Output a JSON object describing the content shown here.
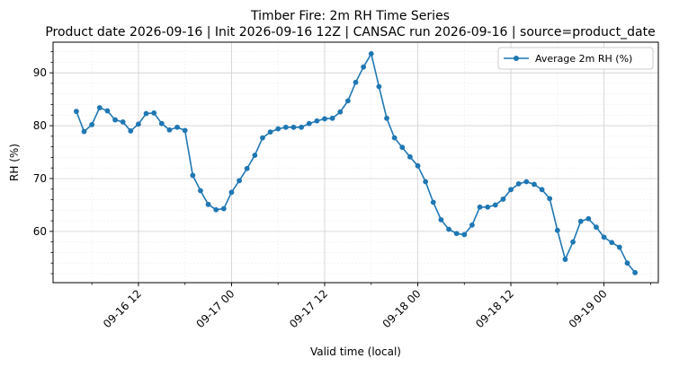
{
  "chart_data": {
    "type": "line",
    "title": "Timber Fire: 2m RH Time Series",
    "subtitle": "Product date 2026-09-16 | Init 2026-09-16 12Z | CANSAC run 2026-09-16 | source=product_date",
    "xlabel": "Valid time (local)",
    "ylabel": "RH (%)",
    "xlim": [
      "2026-09-16 01:00",
      "2026-09-19 07:00"
    ],
    "ylim": [
      50.3,
      95.8
    ],
    "x_ticks": [
      "09-16 12",
      "09-17 00",
      "09-17 12",
      "09-18 00",
      "09-18 12",
      "09-19 00"
    ],
    "y_ticks": [
      60,
      70,
      80,
      90
    ],
    "grid": true,
    "legend_position": "top-right",
    "colors": {
      "series": "#1f77b4",
      "grid_major": "#d0d0d0",
      "grid_minor": "#ececec"
    },
    "series": [
      {
        "name": "Average 2m RH (%)",
        "start": "2026-09-16 04:00",
        "step_hours": 1,
        "values": [
          82.7,
          78.9,
          80.2,
          83.4,
          82.8,
          81.1,
          80.7,
          79.0,
          80.3,
          82.3,
          82.4,
          80.4,
          79.2,
          79.7,
          79.1,
          70.6,
          67.7,
          65.1,
          64.1,
          64.3,
          67.4,
          69.6,
          71.9,
          74.4,
          77.7,
          78.8,
          79.4,
          79.7,
          79.7,
          79.7,
          80.4,
          80.9,
          81.3,
          81.4,
          82.6,
          84.7,
          88.2,
          91.1,
          93.6,
          87.4,
          81.4,
          77.7,
          75.9,
          74.1,
          72.4,
          69.4,
          65.5,
          62.2,
          60.4,
          59.6,
          59.4,
          61.2,
          64.6,
          64.6,
          65.0,
          66.1,
          67.9,
          69.0,
          69.4,
          68.9,
          67.9,
          66.2,
          60.2,
          54.7,
          58.0,
          61.9,
          62.4,
          60.8,
          58.9,
          57.9,
          57.0,
          54.0,
          52.2
        ]
      }
    ]
  }
}
